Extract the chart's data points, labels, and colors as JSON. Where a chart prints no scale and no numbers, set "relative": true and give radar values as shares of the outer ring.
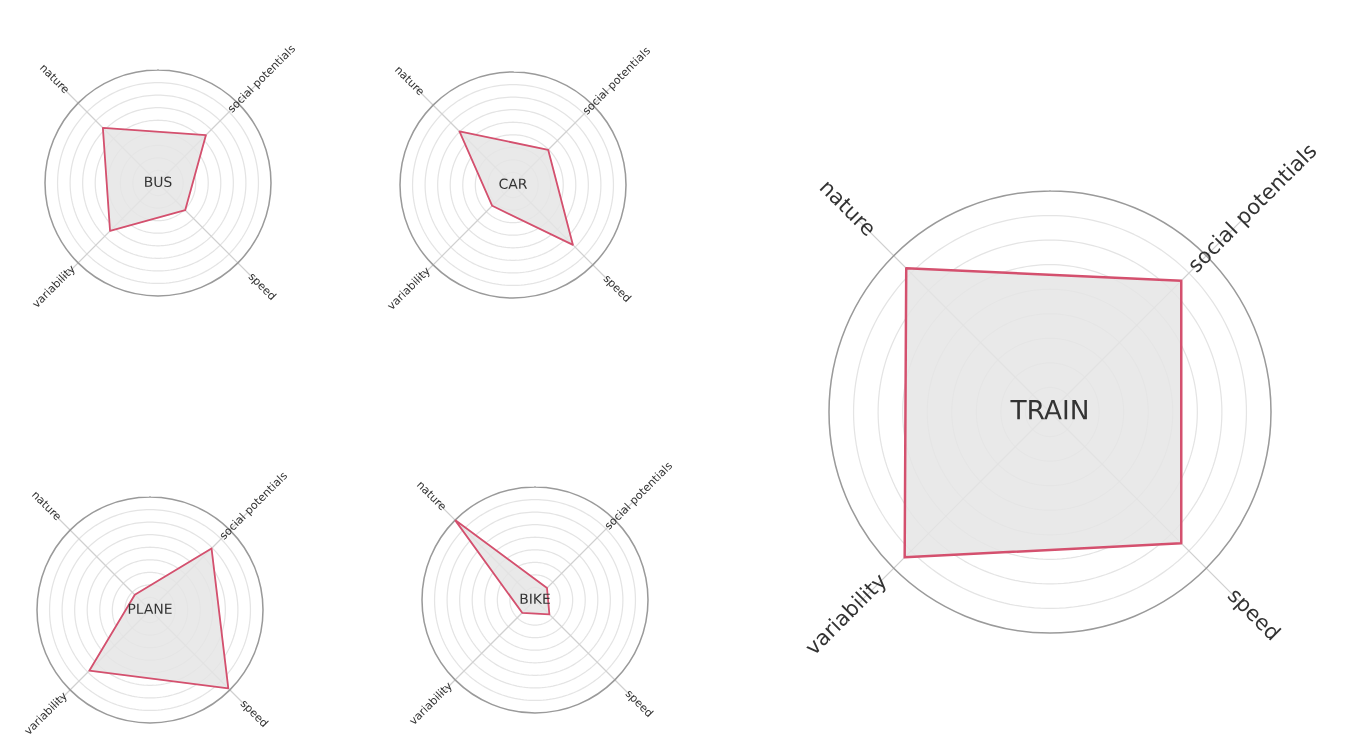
{
  "chart_data": [
    {
      "type": "radar",
      "title": "TRAIN",
      "categories": [
        "social potentials",
        "speed",
        "variability",
        "nature"
      ],
      "relative": true,
      "grid": true,
      "series": [
        {
          "color": "#d4506e",
          "values": [
            0.84,
            0.84,
            0.93,
            0.92
          ]
        }
      ]
    },
    {
      "type": "radar",
      "title": "BIKE",
      "categories": [
        "social potentials",
        "speed",
        "variability",
        "nature"
      ],
      "relative": true,
      "grid": true,
      "series": [
        {
          "color": "#d4506e",
          "values": [
            0.15,
            0.18,
            0.16,
            1.0
          ]
        }
      ]
    },
    {
      "type": "radar",
      "title": "CAR",
      "categories": [
        "social potentials",
        "speed",
        "variability",
        "nature"
      ],
      "relative": true,
      "grid": true,
      "series": [
        {
          "color": "#d4506e",
          "values": [
            0.44,
            0.75,
            0.26,
            0.67
          ]
        }
      ]
    },
    {
      "type": "radar",
      "title": "BUS",
      "categories": [
        "social potentials",
        "speed",
        "variability",
        "nature"
      ],
      "relative": true,
      "grid": true,
      "series": [
        {
          "color": "#d4506e",
          "values": [
            0.6,
            0.34,
            0.6,
            0.69
          ]
        }
      ]
    },
    {
      "type": "radar",
      "title": "PLANE",
      "categories": [
        "social potentials",
        "speed",
        "variability",
        "nature"
      ],
      "relative": true,
      "grid": true,
      "series": [
        {
          "color": "#d4506e",
          "values": [
            0.77,
            0.98,
            0.76,
            0.19
          ]
        }
      ]
    }
  ]
}
